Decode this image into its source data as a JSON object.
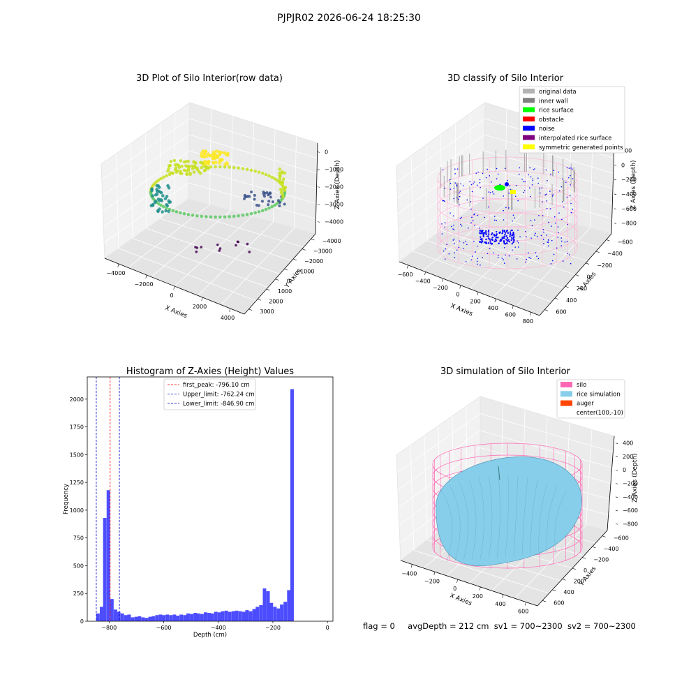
{
  "suptitle": "PJPJR02 2026-06-24 18:25:30",
  "status_line": {
    "flag": "flag = 0",
    "avg_depth": "avgDepth = 212 cm",
    "sv1": "sv1 = 700~2300",
    "sv2": "sv2 = 700~2300"
  },
  "colors": {
    "hist_bar": "#4d4dff",
    "first_peak": "#ff0000",
    "limits": "#0000cc",
    "silo": "#ff69b4",
    "rice_simulation": "#87ceeb",
    "auger": "#ff4500",
    "original_data": "#b3b3b3",
    "inner_wall": "#808080",
    "rice_surface": "#00ff00",
    "obstacle": "#ff0000",
    "noise": "#0000ff",
    "interpolated_rice_surface": "#800080",
    "symmetric_generated_points": "#ffff00"
  },
  "chart_data": [
    {
      "type": "scatter",
      "projection": "3d",
      "title": "3D Plot of Silo Interior(row data)",
      "xlabel": "X Axies",
      "ylabel": "Y Axies",
      "zlabel": "Z Axies (Depth)",
      "xticks": [
        "−4000",
        "−2000",
        "0",
        "2000",
        "4000"
      ],
      "yticks": [
        "3000",
        "2000",
        "1000",
        "0",
        "−1000",
        "−2000",
        "−3000",
        "−4000"
      ],
      "zticks": [
        "0",
        "−1000",
        "−2000",
        "−3000",
        "−4000"
      ],
      "colormap": "viridis (by depth)",
      "grid": true
    },
    {
      "type": "scatter",
      "projection": "3d",
      "title": "3D classify of Silo Interior",
      "xlabel": "X Axies",
      "ylabel": "Y Axies",
      "zlabel": "Z Axies (Depth)",
      "xticks": [
        "−600",
        "−400",
        "−200",
        "0",
        "200",
        "400",
        "600",
        "800"
      ],
      "yticks": [
        "600",
        "400",
        "200",
        "0",
        "−200",
        "−400",
        "−600"
      ],
      "zticks": [
        "200",
        "0",
        "−200",
        "−400",
        "−600",
        "−800"
      ],
      "legend": [
        {
          "label": "original data",
          "color": "#b3b3b3"
        },
        {
          "label": "inner wall",
          "color": "#808080"
        },
        {
          "label": "rice surface",
          "color": "#00ff00"
        },
        {
          "label": "obstacle",
          "color": "#ff0000"
        },
        {
          "label": "noise",
          "color": "#0000ff"
        },
        {
          "label": "interpolated rice surface",
          "color": "#800080"
        },
        {
          "label": "symmetric generated points",
          "color": "#ffff00"
        }
      ],
      "legend_loc": "upper right",
      "grid": true
    },
    {
      "type": "bar",
      "title": "Histogram of Z-Axies (Height) Values",
      "xlabel": "Depth (cm)",
      "ylabel": "Frequency",
      "xlim": [
        -880,
        20
      ],
      "ylim": [
        0,
        2200
      ],
      "xticks": [
        -800,
        -600,
        -400,
        -200,
        0
      ],
      "yticks": [
        0,
        250,
        500,
        750,
        1000,
        1250,
        1500,
        1750,
        2000
      ],
      "bin_width": 12.7,
      "bins_start": [
        -847,
        -834,
        -822,
        -809,
        -796,
        -783,
        -771,
        -758,
        -745,
        -733,
        -720,
        -707,
        -695,
        -682,
        -669,
        -656,
        -644,
        -631,
        -618,
        -606,
        -593,
        -580,
        -567,
        -555,
        -542,
        -529,
        -517,
        -504,
        -491,
        -479,
        -466,
        -453,
        -440,
        -428,
        -415,
        -402,
        -390,
        -377,
        -364,
        -351,
        -339,
        -326,
        -313,
        -301,
        -288,
        -275,
        -263,
        -250,
        -237,
        -224,
        -212,
        -199,
        -186,
        -174,
        -161,
        -148,
        -136,
        -123,
        -110,
        -97,
        -85,
        -72,
        -59,
        -47,
        -34,
        -21,
        -8
      ],
      "values": [
        70,
        130,
        930,
        1180,
        200,
        105,
        85,
        70,
        55,
        60,
        35,
        40,
        45,
        35,
        30,
        40,
        45,
        55,
        60,
        55,
        60,
        55,
        60,
        50,
        60,
        55,
        70,
        65,
        75,
        70,
        65,
        80,
        75,
        70,
        85,
        80,
        90,
        95,
        85,
        90,
        95,
        90,
        85,
        100,
        90,
        110,
        130,
        145,
        295,
        270,
        165,
        130,
        115,
        150,
        175,
        280,
        2090,
        0,
        0,
        0,
        0,
        0,
        0,
        0,
        0,
        0,
        0
      ],
      "vlines": [
        {
          "label": "first_peak: -796.10 cm",
          "x": -796.1,
          "color": "#ff0000"
        },
        {
          "label": "Upper_limit: -762.24 cm",
          "x": -762.24,
          "color": "#0000cc"
        },
        {
          "label": "Lower_limit: -846.90 cm",
          "x": -846.9,
          "color": "#0000cc"
        }
      ],
      "legend_loc": "upper center"
    },
    {
      "type": "surface",
      "projection": "3d",
      "title": "3D simulation of Silo Interior",
      "xlabel": "X Axies",
      "ylabel": "Y Axies",
      "zlabel": "Z Axies (Depth)",
      "xticks": [
        "−400",
        "−200",
        "0",
        "200",
        "400",
        "600"
      ],
      "yticks": [
        "600",
        "400",
        "200",
        "0",
        "−200",
        "−400",
        "−600"
      ],
      "zticks": [
        "400",
        "200",
        "0",
        "−200",
        "−400",
        "−600",
        "−800"
      ],
      "legend": [
        {
          "label": "silo",
          "color": "#ff69b4"
        },
        {
          "label": "rice simulation",
          "color": "#87ceeb"
        },
        {
          "label": "auger",
          "color": "#ff4500"
        },
        {
          "label": "center(100,-10)",
          "color": ""
        }
      ],
      "legend_loc": "upper right",
      "grid": true
    }
  ]
}
